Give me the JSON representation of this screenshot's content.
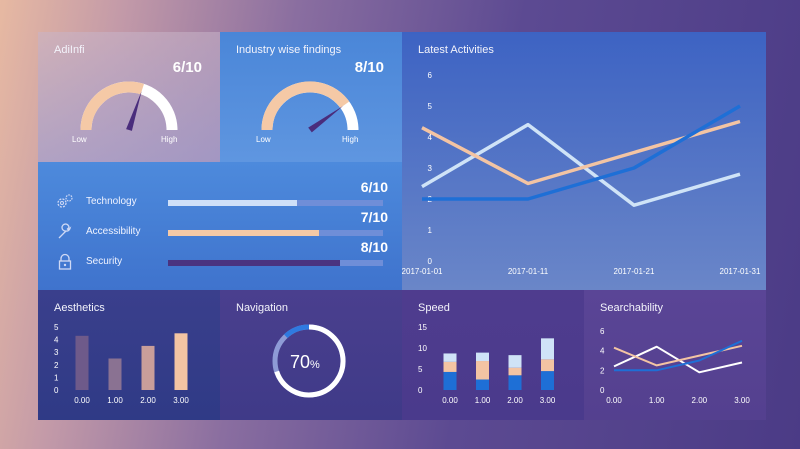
{
  "gauges": [
    {
      "title": "AdiInfi",
      "score": "6/10",
      "low": "Low",
      "high": "High",
      "value": 0.6
    },
    {
      "title": "Industry wise findings",
      "score": "8/10",
      "low": "Low",
      "high": "High",
      "value": 0.8
    }
  ],
  "metrics": [
    {
      "name": "Technology",
      "score": "6/10",
      "value": 0.6,
      "color": "#cfe0f8",
      "icon": "gears-icon"
    },
    {
      "name": "Accessibility",
      "score": "7/10",
      "value": 0.7,
      "color": "#f5c9a6",
      "icon": "wrench-icon"
    },
    {
      "name": "Security",
      "score": "8/10",
      "value": 0.8,
      "color": "#4a3380",
      "icon": "padlock-icon"
    }
  ],
  "latest": {
    "title": "Latest Activities",
    "chart_data": {
      "type": "line",
      "x": [
        "2017-01-01",
        "2017-01-11",
        "2017-01-21",
        "2017-01-31"
      ],
      "ylim": [
        0,
        6
      ],
      "yticks": [
        0,
        1,
        2,
        3,
        4,
        5,
        6
      ],
      "series": [
        {
          "color": "#cfe3f7",
          "values": [
            2.4,
            4.4,
            1.8,
            2.8
          ]
        },
        {
          "color": "#f3c4a3",
          "values": [
            4.3,
            2.5,
            3.5,
            4.5
          ]
        },
        {
          "color": "#1e6fd6",
          "values": [
            2.0,
            2.0,
            3.0,
            5.0
          ]
        }
      ]
    }
  },
  "aesthetics": {
    "title": "Aesthetics",
    "chart_data": {
      "type": "bar",
      "categories": [
        "0.00",
        "1.00",
        "2.00",
        "3.00"
      ],
      "values": [
        4.3,
        2.5,
        3.5,
        4.5
      ],
      "colors": [
        "#6e5a8a",
        "#8a7292",
        "#c99e9a",
        "#f3c4a3"
      ],
      "ylim": [
        0,
        5
      ],
      "yticks": [
        0,
        1,
        2,
        3,
        4,
        5
      ]
    }
  },
  "navigation": {
    "title": "Navigation",
    "percent_number": "70",
    "percent_sign": "%",
    "value": 0.7
  },
  "speed": {
    "title": "Speed",
    "chart_data": {
      "type": "bar",
      "categories": [
        "0.00",
        "1.00",
        "2.00",
        "3.00"
      ],
      "series": [
        {
          "color": "#1e6fd6",
          "values": [
            4.3,
            2.5,
            3.5,
            4.5
          ]
        },
        {
          "color": "#f3c4a3",
          "values": [
            2.4,
            4.4,
            1.8,
            2.8
          ]
        },
        {
          "color": "#cfe3f7",
          "values": [
            2.0,
            2.0,
            3.0,
            5.0
          ]
        }
      ],
      "ylim": [
        0,
        15
      ],
      "yticks": [
        0,
        5,
        10,
        15
      ]
    }
  },
  "searchability": {
    "title": "Searchability",
    "chart_data": {
      "type": "line",
      "x": [
        0,
        1,
        2,
        3
      ],
      "xticks": [
        "0.00",
        "1.00",
        "2.00",
        "3.00"
      ],
      "ylim": [
        0,
        6
      ],
      "yticks": [
        0,
        2,
        4,
        6
      ],
      "series": [
        {
          "color": "#ffffff",
          "values": [
            2.4,
            4.4,
            1.8,
            2.8
          ]
        },
        {
          "color": "#f3c4a3",
          "values": [
            4.3,
            2.5,
            3.5,
            4.5
          ]
        },
        {
          "color": "#1e6fd6",
          "values": [
            2.0,
            2.0,
            3.0,
            5.0
          ]
        }
      ]
    }
  }
}
